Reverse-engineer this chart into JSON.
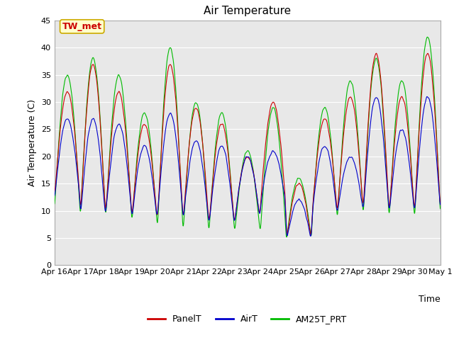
{
  "title": "Air Temperature",
  "xlabel": "Time",
  "ylabel": "Air Temperature (C)",
  "ylim": [
    0,
    45
  ],
  "annotation_text": "TW_met",
  "annotation_box_color": "#ffffcc",
  "annotation_text_color": "#cc0000",
  "annotation_edge_color": "#ccaa00",
  "line_colors": {
    "PanelT": "#cc0000",
    "AirT": "#0000cc",
    "AM25T_PRT": "#00bb00"
  },
  "line_width": 0.8,
  "plot_bg_color": "#e8e8e8",
  "tick_labels": [
    "Apr 16",
    "Apr 17",
    "Apr 18",
    "Apr 19",
    "Apr 20",
    "Apr 21",
    "Apr 22",
    "Apr 23",
    "Apr 24",
    "Apr 25",
    "Apr 26",
    "Apr 27",
    "Apr 28",
    "Apr 29",
    "Apr 30",
    "May 1"
  ],
  "yticks": [
    0,
    5,
    10,
    15,
    20,
    25,
    30,
    35,
    40,
    45
  ],
  "title_fontsize": 11,
  "label_fontsize": 9,
  "tick_fontsize": 8,
  "day_max_panel": [
    32,
    37,
    32,
    26,
    37,
    29,
    26,
    20,
    30,
    15,
    27,
    31,
    39,
    31,
    39
  ],
  "day_min_panel": [
    12,
    8,
    10,
    8,
    8,
    8,
    7,
    8,
    11,
    4,
    9,
    10,
    10,
    9,
    10
  ],
  "day_max_air": [
    27,
    27,
    26,
    22,
    28,
    23,
    22,
    20,
    21,
    12,
    22,
    20,
    31,
    25,
    31
  ],
  "day_min_air": [
    12,
    8,
    10,
    8,
    9,
    8,
    7,
    8,
    11,
    4,
    9,
    10,
    10,
    9,
    10
  ],
  "day_max_am25": [
    35,
    38,
    35,
    28,
    40,
    30,
    28,
    21,
    29,
    16,
    29,
    34,
    38,
    34,
    42
  ],
  "day_min_am25": [
    10,
    8,
    9,
    7,
    6,
    6,
    6,
    6,
    6,
    4,
    8,
    9,
    9,
    8,
    9
  ],
  "peak_phase": 0.58,
  "n_pts_per_day": 144
}
